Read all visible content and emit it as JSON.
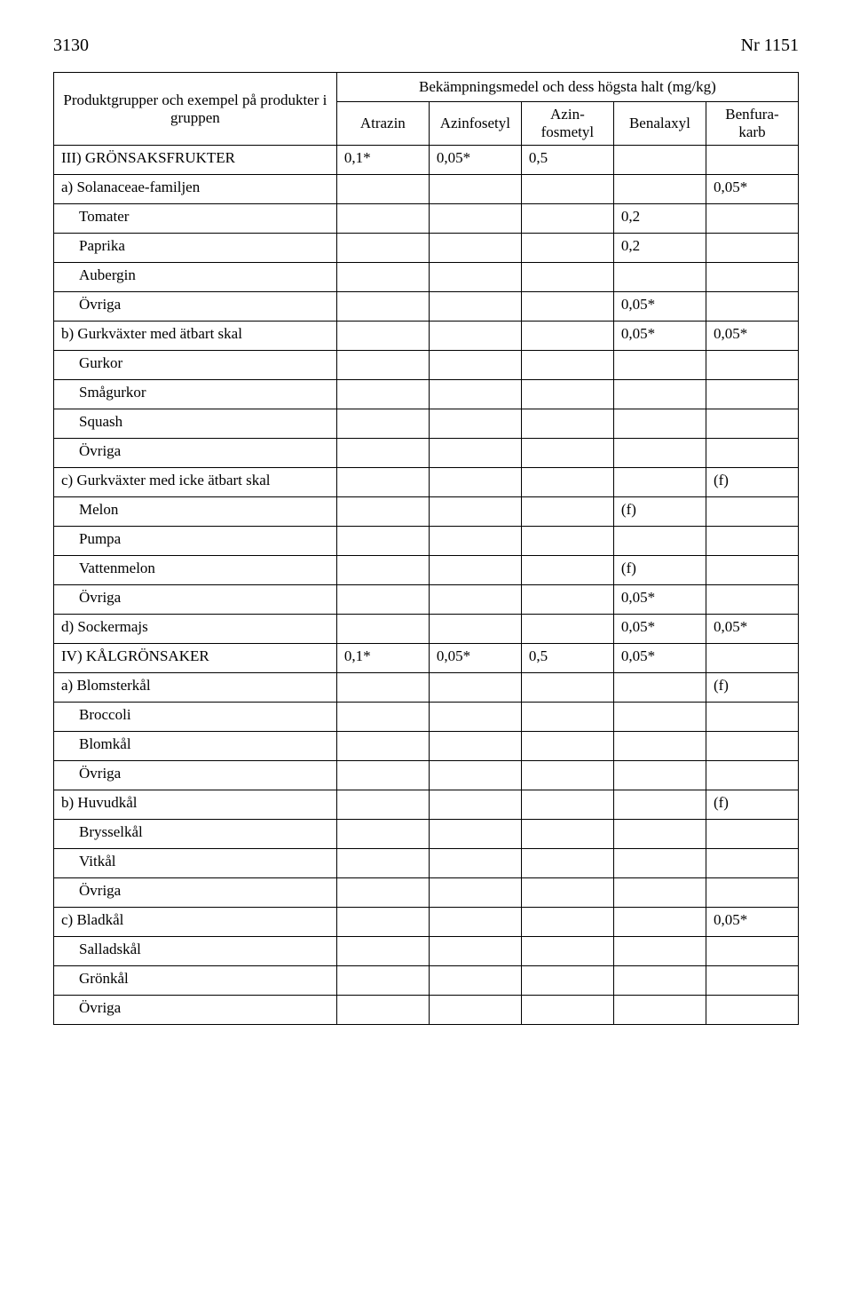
{
  "header": {
    "page_number": "3130",
    "doc_number": "Nr 1151"
  },
  "table": {
    "head": {
      "left_top": "Produktgrupper och exempel på produkter i gruppen",
      "right_top": "Bekämpningsmedel och dess högsta halt (mg/kg)",
      "columns": [
        "Atrazin",
        "Azinfosetyl",
        "Azin-\nfosmetyl",
        "Benalaxyl",
        "Benfura-\nkarb"
      ]
    },
    "rows": [
      {
        "label": "III) GRÖNSAKSFRUKTER",
        "indent": 0,
        "v": [
          "0,1*",
          "0,05*",
          "0,5",
          "",
          ""
        ]
      },
      {
        "label": "a) Solanaceae-familjen",
        "indent": 0,
        "v": [
          "",
          "",
          "",
          "",
          "0,05*"
        ]
      },
      {
        "label": "Tomater",
        "indent": 1,
        "v": [
          "",
          "",
          "",
          "0,2",
          ""
        ]
      },
      {
        "label": "Paprika",
        "indent": 1,
        "v": [
          "",
          "",
          "",
          "0,2",
          ""
        ]
      },
      {
        "label": "Aubergin",
        "indent": 1,
        "v": [
          "",
          "",
          "",
          "",
          ""
        ]
      },
      {
        "label": "Övriga",
        "indent": 1,
        "v": [
          "",
          "",
          "",
          "0,05*",
          ""
        ]
      },
      {
        "label": "b) Gurkväxter med ätbart skal",
        "indent": 0,
        "v": [
          "",
          "",
          "",
          "0,05*",
          "0,05*"
        ]
      },
      {
        "label": "Gurkor",
        "indent": 1,
        "v": [
          "",
          "",
          "",
          "",
          ""
        ]
      },
      {
        "label": "Smågurkor",
        "indent": 1,
        "v": [
          "",
          "",
          "",
          "",
          ""
        ]
      },
      {
        "label": "Squash",
        "indent": 1,
        "v": [
          "",
          "",
          "",
          "",
          ""
        ]
      },
      {
        "label": "Övriga",
        "indent": 1,
        "v": [
          "",
          "",
          "",
          "",
          ""
        ]
      },
      {
        "label": "c) Gurkväxter med icke ätbart skal",
        "indent": 0,
        "v": [
          "",
          "",
          "",
          "",
          "(f)"
        ]
      },
      {
        "label": "Melon",
        "indent": 1,
        "v": [
          "",
          "",
          "",
          "(f)",
          ""
        ]
      },
      {
        "label": "Pumpa",
        "indent": 1,
        "v": [
          "",
          "",
          "",
          "",
          ""
        ]
      },
      {
        "label": "Vattenmelon",
        "indent": 1,
        "v": [
          "",
          "",
          "",
          "(f)",
          ""
        ]
      },
      {
        "label": "Övriga",
        "indent": 1,
        "v": [
          "",
          "",
          "",
          "0,05*",
          ""
        ]
      },
      {
        "label": "d) Sockermajs",
        "indent": 0,
        "v": [
          "",
          "",
          "",
          "0,05*",
          "0,05*"
        ]
      },
      {
        "label": "IV) KÅLGRÖNSAKER",
        "indent": 0,
        "v": [
          "0,1*",
          "0,05*",
          "0,5",
          "0,05*",
          ""
        ]
      },
      {
        "label": "a) Blomsterkål",
        "indent": 0,
        "v": [
          "",
          "",
          "",
          "",
          "(f)"
        ]
      },
      {
        "label": "Broccoli",
        "indent": 1,
        "v": [
          "",
          "",
          "",
          "",
          ""
        ]
      },
      {
        "label": "Blomkål",
        "indent": 1,
        "v": [
          "",
          "",
          "",
          "",
          ""
        ]
      },
      {
        "label": "Övriga",
        "indent": 1,
        "v": [
          "",
          "",
          "",
          "",
          ""
        ]
      },
      {
        "label": "b) Huvudkål",
        "indent": 0,
        "v": [
          "",
          "",
          "",
          "",
          "(f)"
        ]
      },
      {
        "label": "Brysselkål",
        "indent": 1,
        "v": [
          "",
          "",
          "",
          "",
          ""
        ]
      },
      {
        "label": "Vitkål",
        "indent": 1,
        "v": [
          "",
          "",
          "",
          "",
          ""
        ]
      },
      {
        "label": "Övriga",
        "indent": 1,
        "v": [
          "",
          "",
          "",
          "",
          ""
        ]
      },
      {
        "label": "c) Bladkål",
        "indent": 0,
        "v": [
          "",
          "",
          "",
          "",
          "0,05*"
        ]
      },
      {
        "label": "Salladskål",
        "indent": 1,
        "v": [
          "",
          "",
          "",
          "",
          ""
        ]
      },
      {
        "label": "Grönkål",
        "indent": 1,
        "v": [
          "",
          "",
          "",
          "",
          ""
        ]
      },
      {
        "label": "Övriga",
        "indent": 1,
        "v": [
          "",
          "",
          "",
          "",
          ""
        ]
      }
    ]
  }
}
